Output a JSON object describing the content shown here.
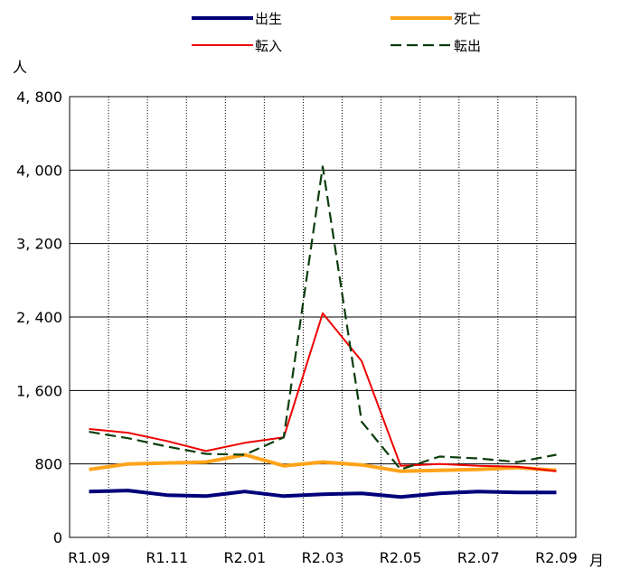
{
  "chart_data": {
    "type": "line",
    "title": "",
    "ylabel": "人",
    "xlabel": "月",
    "x": [
      "R1.09",
      "R1.10",
      "R1.11",
      "R1.12",
      "R2.01",
      "R2.02",
      "R2.03",
      "R2.04",
      "R2.05",
      "R2.06",
      "R2.07",
      "R2.08",
      "R2.09"
    ],
    "x_tick_labels": [
      {
        "index": 0,
        "label": "R1.09"
      },
      {
        "index": 2,
        "label": "R1.11"
      },
      {
        "index": 4,
        "label": "R2.01"
      },
      {
        "index": 6,
        "label": "R2.03"
      },
      {
        "index": 8,
        "label": "R2.05"
      },
      {
        "index": 10,
        "label": "R2.07"
      },
      {
        "index": 12,
        "label": "R2.09"
      }
    ],
    "ylim": [
      0,
      4800
    ],
    "y_ticks": [
      {
        "value": 0,
        "label": "0"
      },
      {
        "value": 800,
        "label": "800"
      },
      {
        "value": 1600,
        "label": "1, 600"
      },
      {
        "value": 2400,
        "label": "2, 400"
      },
      {
        "value": 3200,
        "label": "3, 200"
      },
      {
        "value": 4000,
        "label": "4, 000"
      },
      {
        "value": 4800,
        "label": "4, 800"
      }
    ],
    "grid": true,
    "legend_position": "top",
    "series": [
      {
        "name": "出生",
        "color": "#00007a",
        "dash": "solid",
        "values": [
          500,
          510,
          460,
          450,
          500,
          450,
          470,
          480,
          440,
          480,
          500,
          490,
          490
        ]
      },
      {
        "name": "死亡",
        "color": "#ffa319",
        "dash": "solid",
        "values": [
          740,
          800,
          810,
          820,
          900,
          780,
          820,
          790,
          720,
          730,
          740,
          760,
          730
        ]
      },
      {
        "name": "転入",
        "color": "#ee0000",
        "dash": "solid",
        "values": [
          1180,
          1140,
          1050,
          940,
          1030,
          1090,
          2440,
          1920,
          780,
          800,
          780,
          770,
          720
        ]
      },
      {
        "name": "転出",
        "color": "#0b3d0b",
        "dash": "dashed",
        "values": [
          1150,
          1080,
          990,
          910,
          900,
          1090,
          4040,
          1260,
          740,
          880,
          860,
          820,
          900
        ]
      }
    ]
  }
}
